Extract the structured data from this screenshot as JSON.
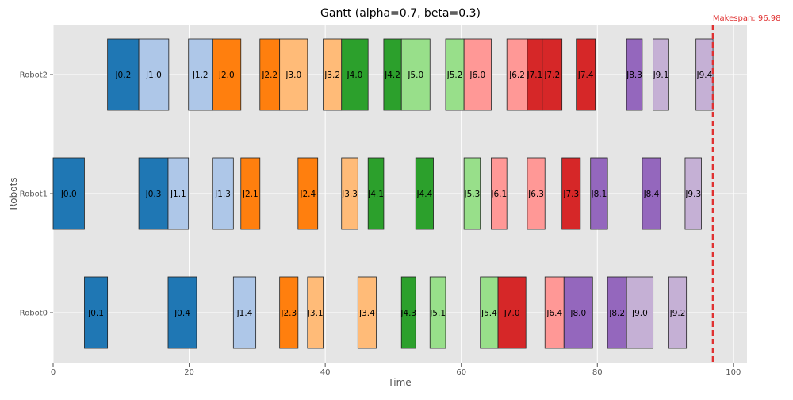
{
  "chart_data": {
    "type": "gantt",
    "title": "Gantt (alpha=0.7, beta=0.3)",
    "xlabel": "Time",
    "ylabel": "Robots",
    "xlim": [
      0,
      102
    ],
    "x_ticks": [
      0,
      20,
      40,
      60,
      80,
      100
    ],
    "grid": true,
    "lanes": [
      "Robot0",
      "Robot1",
      "Robot2"
    ],
    "makespan": {
      "value": 96.98,
      "label": "Makespan: 96.98",
      "color": "#e03131"
    },
    "job_colors": {
      "J0": "#1f77b4",
      "J1": "#aec7e8",
      "J2": "#ff7f0e",
      "J3": "#ffbb78",
      "J4": "#2ca02c",
      "J5": "#98df8a",
      "J6": "#ff9896",
      "J7": "#d62728",
      "J8": "#9467bd",
      "J9": "#c5b0d5"
    },
    "tasks": [
      {
        "robot": "Robot2",
        "label": "J0.2",
        "start": 8.0,
        "end": 12.6
      },
      {
        "robot": "Robot2",
        "label": "J1.0",
        "start": 12.6,
        "end": 17.0
      },
      {
        "robot": "Robot2",
        "label": "J1.2",
        "start": 19.9,
        "end": 23.4
      },
      {
        "robot": "Robot2",
        "label": "J2.0",
        "start": 23.4,
        "end": 27.6
      },
      {
        "robot": "Robot2",
        "label": "J2.2",
        "start": 30.4,
        "end": 33.3
      },
      {
        "robot": "Robot2",
        "label": "J3.0",
        "start": 33.3,
        "end": 37.4
      },
      {
        "robot": "Robot2",
        "label": "J3.2",
        "start": 39.7,
        "end": 42.4
      },
      {
        "robot": "Robot2",
        "label": "J4.0",
        "start": 42.4,
        "end": 46.3
      },
      {
        "robot": "Robot2",
        "label": "J4.2",
        "start": 48.6,
        "end": 51.2
      },
      {
        "robot": "Robot2",
        "label": "J5.0",
        "start": 51.2,
        "end": 55.4
      },
      {
        "robot": "Robot2",
        "label": "J5.2",
        "start": 57.7,
        "end": 60.4
      },
      {
        "robot": "Robot2",
        "label": "J6.0",
        "start": 60.4,
        "end": 64.4
      },
      {
        "robot": "Robot2",
        "label": "J6.2",
        "start": 66.7,
        "end": 69.7
      },
      {
        "robot": "Robot2",
        "label": "J7.1",
        "start": 69.7,
        "end": 71.9
      },
      {
        "robot": "Robot2",
        "label": "J7.2",
        "start": 71.9,
        "end": 74.8
      },
      {
        "robot": "Robot2",
        "label": "J7.4",
        "start": 76.9,
        "end": 79.7
      },
      {
        "robot": "Robot2",
        "label": "J8.3",
        "start": 84.3,
        "end": 86.6
      },
      {
        "robot": "Robot2",
        "label": "J9.1",
        "start": 88.2,
        "end": 90.5
      },
      {
        "robot": "Robot2",
        "label": "J9.4",
        "start": 94.5,
        "end": 97.0
      },
      {
        "robot": "Robot1",
        "label": "J0.0",
        "start": 0.0,
        "end": 4.6
      },
      {
        "robot": "Robot1",
        "label": "J0.3",
        "start": 12.6,
        "end": 16.9
      },
      {
        "robot": "Robot1",
        "label": "J1.1",
        "start": 16.9,
        "end": 19.9
      },
      {
        "robot": "Robot1",
        "label": "J1.3",
        "start": 23.4,
        "end": 26.5
      },
      {
        "robot": "Robot1",
        "label": "J2.1",
        "start": 27.6,
        "end": 30.4
      },
      {
        "robot": "Robot1",
        "label": "J2.4",
        "start": 36.0,
        "end": 38.9
      },
      {
        "robot": "Robot1",
        "label": "J3.3",
        "start": 42.4,
        "end": 44.8
      },
      {
        "robot": "Robot1",
        "label": "J4.1",
        "start": 46.3,
        "end": 48.6
      },
      {
        "robot": "Robot1",
        "label": "J4.4",
        "start": 53.3,
        "end": 55.9
      },
      {
        "robot": "Robot1",
        "label": "J5.3",
        "start": 60.4,
        "end": 62.8
      },
      {
        "robot": "Robot1",
        "label": "J6.1",
        "start": 64.4,
        "end": 66.7
      },
      {
        "robot": "Robot1",
        "label": "J6.3",
        "start": 69.7,
        "end": 72.3
      },
      {
        "robot": "Robot1",
        "label": "J7.3",
        "start": 74.8,
        "end": 77.5
      },
      {
        "robot": "Robot1",
        "label": "J8.1",
        "start": 79.0,
        "end": 81.5
      },
      {
        "robot": "Robot1",
        "label": "J8.4",
        "start": 86.6,
        "end": 89.3
      },
      {
        "robot": "Robot1",
        "label": "J9.3",
        "start": 92.9,
        "end": 95.3
      },
      {
        "robot": "Robot0",
        "label": "J0.1",
        "start": 4.6,
        "end": 8.0
      },
      {
        "robot": "Robot0",
        "label": "J0.4",
        "start": 16.9,
        "end": 21.1
      },
      {
        "robot": "Robot0",
        "label": "J1.4",
        "start": 26.5,
        "end": 29.8
      },
      {
        "robot": "Robot0",
        "label": "J2.3",
        "start": 33.3,
        "end": 36.0
      },
      {
        "robot": "Robot0",
        "label": "J3.1",
        "start": 37.4,
        "end": 39.7
      },
      {
        "robot": "Robot0",
        "label": "J3.4",
        "start": 44.8,
        "end": 47.5
      },
      {
        "robot": "Robot0",
        "label": "J4.3",
        "start": 51.2,
        "end": 53.3
      },
      {
        "robot": "Robot0",
        "label": "J5.1",
        "start": 55.4,
        "end": 57.7
      },
      {
        "robot": "Robot0",
        "label": "J5.4",
        "start": 62.8,
        "end": 65.4
      },
      {
        "robot": "Robot0",
        "label": "J7.0",
        "start": 65.4,
        "end": 69.5
      },
      {
        "robot": "Robot0",
        "label": "J6.4",
        "start": 72.3,
        "end": 75.1
      },
      {
        "robot": "Robot0",
        "label": "J8.0",
        "start": 75.1,
        "end": 79.3
      },
      {
        "robot": "Robot0",
        "label": "J8.2",
        "start": 81.5,
        "end": 84.3
      },
      {
        "robot": "Robot0",
        "label": "J9.0",
        "start": 84.3,
        "end": 88.2
      },
      {
        "robot": "Robot0",
        "label": "J9.2",
        "start": 90.5,
        "end": 93.1
      }
    ]
  }
}
